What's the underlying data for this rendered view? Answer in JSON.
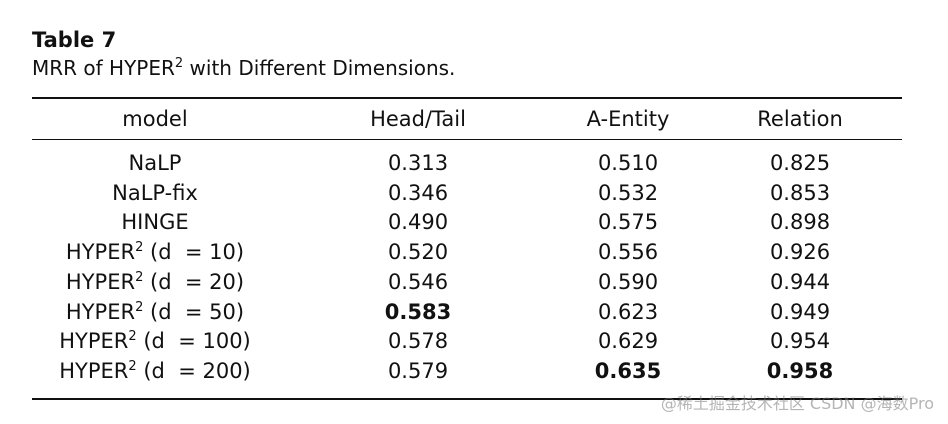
{
  "caption": {
    "label": "Table 7",
    "title_prefix": "MRR of HYPER",
    "title_sup": "2",
    "title_suffix": " with Different Dimensions."
  },
  "table": {
    "headers": [
      "model",
      "Head/Tail",
      "A-Entity",
      "Relation"
    ],
    "rows": [
      {
        "model": "NaLP",
        "model_sup": "",
        "model_suffix": "",
        "head_tail": "0.313",
        "a_entity": "0.510",
        "relation": "0.825",
        "bold": []
      },
      {
        "model": "NaLP-fix",
        "model_sup": "",
        "model_suffix": "",
        "head_tail": "0.346",
        "a_entity": "0.532",
        "relation": "0.853",
        "bold": []
      },
      {
        "model": "HINGE",
        "model_sup": "",
        "model_suffix": "",
        "head_tail": "0.490",
        "a_entity": "0.575",
        "relation": "0.898",
        "bold": []
      },
      {
        "model": "HYPER",
        "model_sup": "2",
        "model_suffix": " (d  = 10)",
        "head_tail": "0.520",
        "a_entity": "0.556",
        "relation": "0.926",
        "bold": []
      },
      {
        "model": "HYPER",
        "model_sup": "2",
        "model_suffix": " (d  = 20)",
        "head_tail": "0.546",
        "a_entity": "0.590",
        "relation": "0.944",
        "bold": []
      },
      {
        "model": "HYPER",
        "model_sup": "2",
        "model_suffix": " (d  = 50)",
        "head_tail": "0.583",
        "a_entity": "0.623",
        "relation": "0.949",
        "bold": [
          "head_tail"
        ]
      },
      {
        "model": "HYPER",
        "model_sup": "2",
        "model_suffix": " (d  = 100)",
        "head_tail": "0.578",
        "a_entity": "0.629",
        "relation": "0.954",
        "bold": []
      },
      {
        "model": "HYPER",
        "model_sup": "2",
        "model_suffix": " (d  = 200)",
        "head_tail": "0.579",
        "a_entity": "0.635",
        "relation": "0.958",
        "bold": [
          "a_entity",
          "relation"
        ]
      }
    ]
  },
  "watermark": "@稀土掘金技术社区 CSDN @海数Pro"
}
